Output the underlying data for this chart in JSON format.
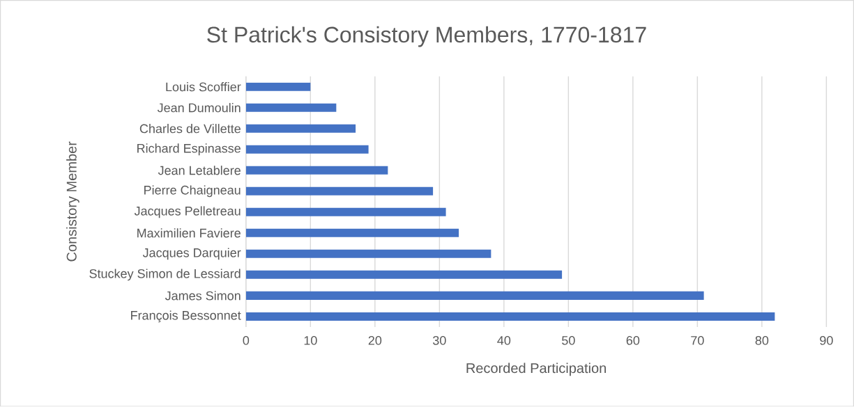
{
  "chart_data": {
    "type": "bar",
    "orientation": "horizontal",
    "title": "St Patrick's Consistory Members, 1770-1817",
    "xlabel": "Recorded Participation",
    "ylabel": "Consistory Member",
    "categories": [
      "Louis Scoffier",
      "Jean Dumoulin",
      "Charles de Villette",
      "Richard Espinasse",
      "Jean Letablere",
      "Pierre Chaigneau",
      "Jacques Pelletreau",
      "Maximilien Faviere",
      "Jacques Darquier",
      "Stuckey Simon de Lessiard",
      "James Simon",
      "François Bessonnet"
    ],
    "values": [
      10,
      14,
      17,
      19,
      22,
      29,
      31,
      33,
      38,
      49,
      71,
      82
    ],
    "color": "#4472c4",
    "xlim": [
      0,
      90
    ],
    "xticks": [
      0,
      10,
      20,
      30,
      40,
      50,
      60,
      70,
      80,
      90
    ],
    "grid": "x"
  }
}
